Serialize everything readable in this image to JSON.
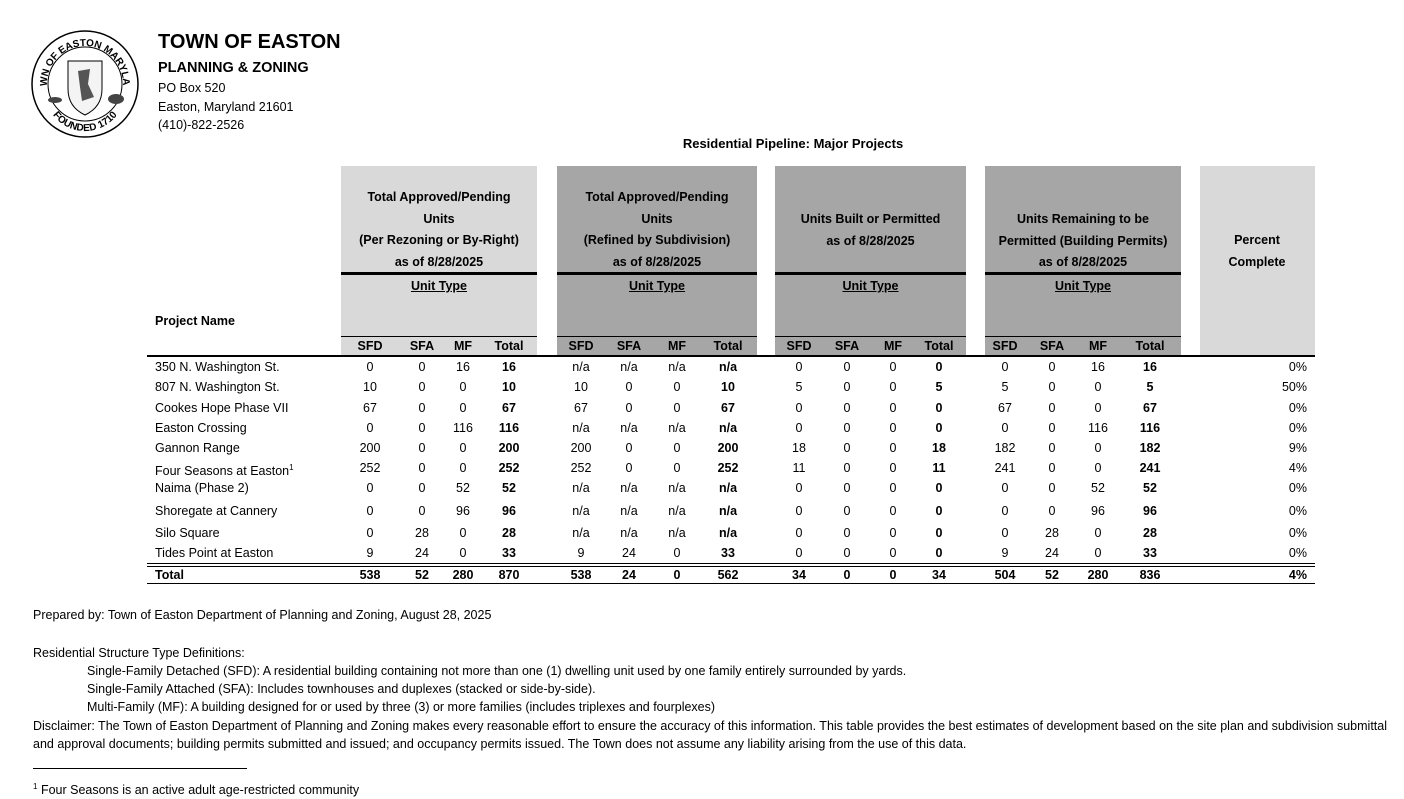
{
  "seal": {
    "top": "TOWN OF EASTON MARYLAND",
    "bottom": "FOUNDED 1710"
  },
  "header": {
    "title": "TOWN OF EASTON",
    "subtitle": "PLANNING & ZONING",
    "address": [
      "PO Box 520",
      "Easton, Maryland 21601",
      "(410)-822-2526"
    ]
  },
  "table": {
    "title": "Residential Pipeline: Major Projects",
    "project_header": "Project Name",
    "groups": [
      {
        "lines": [
          "Total Approved/Pending",
          "Units",
          "(Per Rezoning or By-Right)",
          "as of 8/28/2025"
        ],
        "unit_type": "Unit Type",
        "columns": [
          "SFD",
          "SFA",
          "MF",
          "Total"
        ]
      },
      {
        "lines": [
          "Total Approved/Pending",
          "Units",
          "(Refined by Subdivision)",
          "as of 8/28/2025"
        ],
        "unit_type": "Unit Type",
        "columns": [
          "SFD",
          "SFA",
          "MF",
          "Total"
        ]
      },
      {
        "lines": [
          "Units Built or Permitted",
          "as of 8/28/2025"
        ],
        "unit_type": "Unit Type",
        "columns": [
          "SFD",
          "SFA",
          "MF",
          "Total"
        ]
      },
      {
        "lines": [
          "Units Remaining to be",
          "Permitted (Building Permits)",
          "as of 8/28/2025"
        ],
        "unit_type": "Unit Type",
        "columns": [
          "SFD",
          "SFA",
          "MF",
          "Total"
        ]
      }
    ],
    "percent_header": [
      "Percent",
      "Complete"
    ],
    "rows": [
      {
        "name": "350 N. Washington St.",
        "cells": [
          0,
          0,
          16,
          16,
          "n/a",
          "n/a",
          "n/a",
          "n/a",
          0,
          0,
          0,
          0,
          0,
          0,
          16,
          16
        ],
        "percent": "0%"
      },
      {
        "name": "807 N. Washington St.",
        "cells": [
          10,
          0,
          0,
          10,
          10,
          0,
          0,
          10,
          5,
          0,
          0,
          5,
          5,
          0,
          0,
          5
        ],
        "percent": "50%"
      },
      {
        "name": "Cookes Hope Phase VII",
        "cells": [
          67,
          0,
          0,
          67,
          67,
          0,
          0,
          67,
          0,
          0,
          0,
          0,
          67,
          0,
          0,
          67
        ],
        "percent": "0%"
      },
      {
        "name": "Easton Crossing",
        "cells": [
          0,
          0,
          116,
          116,
          "n/a",
          "n/a",
          "n/a",
          "n/a",
          0,
          0,
          0,
          0,
          0,
          0,
          116,
          116
        ],
        "percent": "0%"
      },
      {
        "name": "Gannon Range",
        "cells": [
          200,
          0,
          0,
          200,
          200,
          0,
          0,
          200,
          18,
          0,
          0,
          18,
          182,
          0,
          0,
          182
        ],
        "percent": "9%"
      },
      {
        "name": "Four Seasons at Easton",
        "note": "1",
        "cells": [
          252,
          0,
          0,
          252,
          252,
          0,
          0,
          252,
          11,
          0,
          0,
          11,
          241,
          0,
          0,
          241
        ],
        "percent": "4%"
      },
      {
        "name": "Naima (Phase 2)",
        "cells": [
          0,
          0,
          52,
          52,
          "n/a",
          "n/a",
          "n/a",
          "n/a",
          0,
          0,
          0,
          0,
          0,
          0,
          52,
          52
        ],
        "percent": "0%"
      },
      {
        "name": "Shoregate at Cannery",
        "cells": [
          0,
          0,
          96,
          96,
          "n/a",
          "n/a",
          "n/a",
          "n/a",
          0,
          0,
          0,
          0,
          0,
          0,
          96,
          96
        ],
        "percent": "0%"
      },
      {
        "name": "Silo Square",
        "cells": [
          0,
          28,
          0,
          28,
          "n/a",
          "n/a",
          "n/a",
          "n/a",
          0,
          0,
          0,
          0,
          0,
          28,
          0,
          28
        ],
        "percent": "0%"
      },
      {
        "name": "Tides Point at Easton",
        "cells": [
          9,
          24,
          0,
          33,
          9,
          24,
          0,
          33,
          0,
          0,
          0,
          0,
          9,
          24,
          0,
          33
        ],
        "percent": "0%"
      }
    ],
    "total": {
      "name": "Total",
      "cells": [
        538,
        52,
        280,
        870,
        538,
        24,
        0,
        562,
        34,
        0,
        0,
        34,
        504,
        52,
        280,
        836
      ],
      "percent": "4%"
    }
  },
  "footer": {
    "prepared": "Prepared by: Town of Easton Department of Planning and Zoning, August 28, 2025",
    "definitions_title": "Residential Structure Type Definitions:",
    "definitions": [
      "Single-Family Detached (SFD): A residential building containing not more than one (1) dwelling unit used by one family entirely surrounded by yards.",
      "Single-Family Attached (SFA): Includes townhouses and duplexes (stacked or side-by-side).",
      "Multi-Family (MF): A building designed for or used by three (3) or more families (includes triplexes and fourplexes)"
    ],
    "disclaimer": "Disclaimer: The Town of Easton Department of Planning and Zoning makes every reasonable effort to ensure the accuracy of this information. This table provides the best estimates of development based on the site plan and subdivision submittal and approval documents; building permits submitted and issued; and occupancy permits issued. The Town does not assume any liability arising from the use of this data.",
    "footnote": {
      "mark": "1",
      "text": "Four Seasons is an active adult age-restricted community"
    }
  }
}
